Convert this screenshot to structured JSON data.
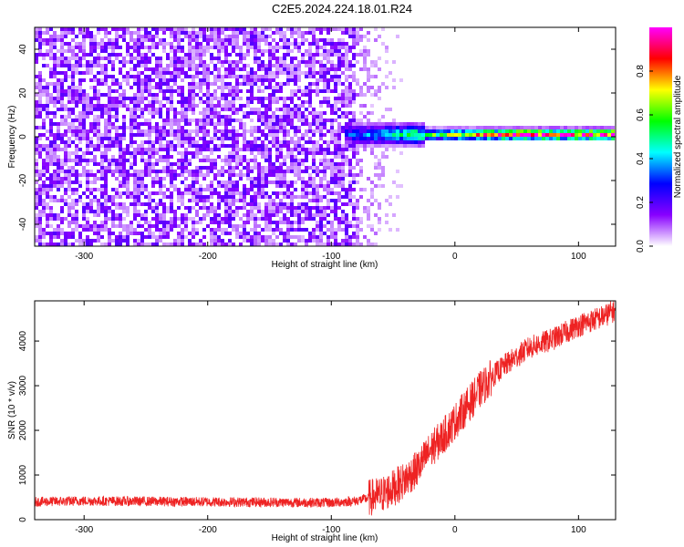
{
  "title": "C2E5.2024.224.18.01.R24",
  "chart_data": [
    {
      "type": "heatmap",
      "xlabel": "Height of straight line (km)",
      "ylabel": "Frequency (Hz)",
      "xlim": [
        -340,
        130
      ],
      "ylim": [
        -50,
        50
      ],
      "xticks": [
        -300,
        -200,
        -100,
        0,
        100
      ],
      "xtick_labels": [
        "-300",
        "-200",
        "-100",
        "0",
        "100"
      ],
      "yticks": [
        -40,
        -20,
        0,
        20,
        40
      ],
      "ytick_labels": [
        "-40",
        "-20",
        "0",
        "20",
        "40"
      ],
      "colorbar": {
        "label": "Normalized spectral amplitude",
        "range": [
          0,
          1
        ],
        "ticks": [
          0.0,
          0.2,
          0.4,
          0.6,
          0.8
        ],
        "tick_labels": [
          "0.0",
          "0.2",
          "0.4",
          "0.6",
          "0.8"
        ],
        "colormap": [
          "#ffffff",
          "#8800ff",
          "#0000ff",
          "#00ffff",
          "#00ff00",
          "#ffff00",
          "#ff0000",
          "#ff00ff"
        ]
      },
      "regions": [
        {
          "name": "broadband noise",
          "x_range": [
            -340,
            -80
          ],
          "freq_range": [
            -50,
            50
          ],
          "amplitude": 0.15
        },
        {
          "name": "fading noise",
          "x_range": [
            -80,
            -40
          ],
          "freq_range": [
            -50,
            50
          ],
          "amplitude": 0.05
        },
        {
          "name": "signal line",
          "x_range": [
            -90,
            130
          ],
          "center_freq": 1,
          "amplitude_start": 0.3,
          "amplitude_end": 0.95
        }
      ]
    },
    {
      "type": "line",
      "xlabel": "Height of straight line (km)",
      "ylabel": "SNR (10 * v/v)",
      "xlim": [
        -340,
        130
      ],
      "ylim": [
        0,
        4900
      ],
      "xticks": [
        -300,
        -200,
        -100,
        0,
        100
      ],
      "xtick_labels": [
        "-300",
        "-200",
        "-100",
        "0",
        "100"
      ],
      "yticks": [
        0,
        1000,
        2000,
        3000,
        4000
      ],
      "ytick_labels": [
        "0",
        "1000",
        "2000",
        "3000",
        "4000"
      ],
      "series": [
        {
          "name": "SNR",
          "color": "#ee2222",
          "x": [
            -340,
            -300,
            -250,
            -200,
            -150,
            -100,
            -80,
            -60,
            -50,
            -40,
            -30,
            -20,
            -10,
            0,
            10,
            20,
            30,
            40,
            50,
            60,
            70,
            80,
            90,
            100,
            110,
            120,
            130
          ],
          "values": [
            400,
            420,
            410,
            400,
            390,
            380,
            420,
            550,
            700,
            900,
            1150,
            1550,
            1850,
            2200,
            2550,
            2900,
            3200,
            3450,
            3650,
            3850,
            3950,
            4050,
            4200,
            4350,
            4450,
            4550,
            4700
          ]
        }
      ]
    }
  ]
}
